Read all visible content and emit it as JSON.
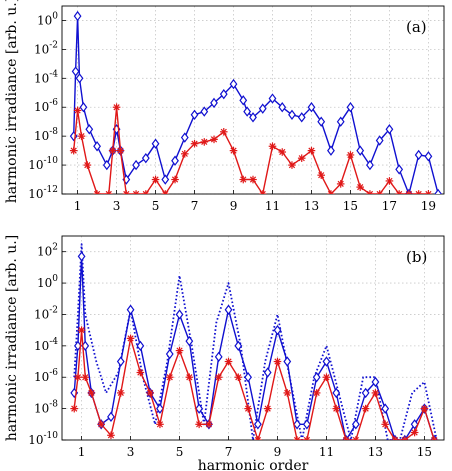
{
  "chart_data": [
    {
      "panel": "(a)",
      "type": "line",
      "yscale": "log",
      "xlim": [
        0.2,
        19.8
      ],
      "ylim": [
        1e-12,
        10.0
      ],
      "xticks": [
        1,
        3,
        5,
        7,
        9,
        11,
        13,
        15,
        17,
        19
      ],
      "ytick_labels": [
        {
          "value": 1,
          "label": "10^0"
        },
        {
          "value": 0.01,
          "label": "10^-2"
        },
        {
          "value": 0.0001,
          "label": "10^-4"
        },
        {
          "value": 1e-06,
          "label": "10^-6"
        },
        {
          "value": 1e-08,
          "label": "10^-8"
        },
        {
          "value": 1e-10,
          "label": "10^-10"
        },
        {
          "value": 1e-12,
          "label": "10^-12"
        }
      ],
      "ylabel": "harmonic irradiance [arb. u.]",
      "xlabel": "",
      "grid": true,
      "series": [
        {
          "color": "#1010d0",
          "line": "solid",
          "marker": "diamond",
          "x": [
            0.8,
            0.9,
            1.0,
            1.1,
            1.3,
            1.6,
            2.0,
            2.5,
            2.8,
            3.0,
            3.2,
            3.5,
            4.0,
            4.5,
            5.0,
            5.5,
            6.0,
            6.5,
            7.0,
            7.5,
            8.0,
            8.5,
            9.0,
            9.5,
            9.7,
            10.0,
            10.5,
            11.0,
            11.5,
            12.0,
            12.5,
            13.0,
            13.5,
            14.0,
            14.5,
            15.0,
            15.5,
            16.0,
            16.5,
            17.0,
            17.5,
            18.0,
            18.5,
            19.0,
            19.5
          ],
          "y": [
            1e-08,
            0.0003,
            2,
            0.0001,
            1e-06,
            3e-08,
            2e-09,
            1e-10,
            1e-09,
            3e-08,
            1e-09,
            1e-11,
            1e-10,
            3e-10,
            3e-09,
            1e-11,
            2e-10,
            8e-09,
            3e-07,
            5e-07,
            2e-06,
            8e-06,
            4e-05,
            3e-06,
            5e-07,
            2e-07,
            8e-07,
            4e-06,
            1e-06,
            3e-07,
            2e-07,
            1e-06,
            1e-07,
            1e-09,
            1e-07,
            1e-06,
            1e-09,
            1e-10,
            5e-09,
            3e-08,
            5e-11,
            1e-12,
            5e-10,
            4e-10,
            1e-12
          ]
        },
        {
          "color": "#e01818",
          "line": "solid",
          "marker": "asterisk",
          "x": [
            0.8,
            1.0,
            1.2,
            1.5,
            2.0,
            2.6,
            2.8,
            3.0,
            3.2,
            3.5,
            4.0,
            4.5,
            5.0,
            5.5,
            6.0,
            6.5,
            7.0,
            7.5,
            8.0,
            8.5,
            9.0,
            9.5,
            10.0,
            10.5,
            11.0,
            11.5,
            12.0,
            12.5,
            13.0,
            13.5,
            14.0,
            14.5,
            15.0,
            15.5,
            16.0,
            16.5,
            17.0,
            17.5,
            18.0,
            18.5,
            19.0
          ],
          "y": [
            1e-09,
            6e-07,
            1e-08,
            1e-10,
            1e-12,
            1e-12,
            1e-09,
            1e-06,
            1e-09,
            1e-12,
            1e-12,
            1e-12,
            1e-11,
            1e-12,
            1e-11,
            6e-10,
            3e-09,
            4e-09,
            6e-09,
            2e-08,
            1e-09,
            1e-11,
            1e-11,
            1e-12,
            2e-09,
            8e-10,
            1e-10,
            3e-10,
            1e-09,
            2e-11,
            1e-12,
            5e-12,
            5e-10,
            3e-12,
            1e-12,
            1e-12,
            8e-12,
            1e-12,
            1e-12,
            1e-12,
            1e-12
          ]
        }
      ]
    },
    {
      "panel": "(b)",
      "type": "line",
      "yscale": "log",
      "xlim": [
        0.2,
        15.8
      ],
      "ylim": [
        1e-10,
        1000.0
      ],
      "xticks": [
        1,
        3,
        5,
        7,
        9,
        11,
        13,
        15
      ],
      "ytick_labels": [
        {
          "value": 100.0,
          "label": "10^2"
        },
        {
          "value": 1,
          "label": "10^0"
        },
        {
          "value": 0.01,
          "label": "10^-2"
        },
        {
          "value": 0.0001,
          "label": "10^-4"
        },
        {
          "value": 1e-06,
          "label": "10^-6"
        },
        {
          "value": 1e-08,
          "label": "10^-8"
        },
        {
          "value": 1e-10,
          "label": "10^-10"
        }
      ],
      "ylabel": "harmonic irradiance [arb. u.]",
      "xlabel": "harmonic order",
      "grid": true,
      "series": [
        {
          "color": "#1010d0",
          "line": "dotted",
          "marker": "none",
          "x": [
            0.7,
            0.85,
            1.0,
            1.15,
            1.3,
            1.6,
            2.0,
            2.5,
            3.0,
            3.5,
            4.0,
            4.5,
            5.0,
            5.5,
            6.0,
            6.5,
            7.0,
            7.5,
            8.0,
            8.5,
            9.0,
            9.5,
            10.0,
            10.5,
            11.0,
            11.5,
            12.0,
            12.5,
            13.0,
            13.5,
            14.0,
            14.5,
            15.0,
            15.5
          ],
          "y": [
            1e-06,
            0.01,
            300.0,
            0.01,
            0.001,
            1e-05,
            1e-07,
            2e-06,
            0.02,
            1e-06,
            1e-09,
            1e-05,
            3,
            0.0001,
            1e-09,
            0.003,
            1,
            0.0001,
            1e-10,
            1e-05,
            0.01,
            1e-06,
            1e-10,
            1e-06,
            0.0001,
            1e-07,
            1e-10,
            1e-06,
            1e-06,
            1e-10,
            1e-10,
            1e-07,
            5e-07,
            1e-10
          ]
        },
        {
          "color": "#1010d0",
          "line": "solid",
          "marker": "diamond",
          "x": [
            0.7,
            0.85,
            1.0,
            1.15,
            1.4,
            1.8,
            2.2,
            2.6,
            3.0,
            3.4,
            3.8,
            4.2,
            4.6,
            5.0,
            5.4,
            5.8,
            6.2,
            6.6,
            7.0,
            7.4,
            7.8,
            8.2,
            8.6,
            9.0,
            9.4,
            9.8,
            10.2,
            10.6,
            11.0,
            11.4,
            11.8,
            12.2,
            12.6,
            13.0,
            13.4,
            13.8,
            14.2,
            14.6,
            15.0,
            15.4
          ],
          "y": [
            1e-07,
            0.0001,
            50.0,
            0.0001,
            1e-07,
            1e-09,
            3e-09,
            1e-05,
            0.02,
            0.0001,
            1e-07,
            1e-08,
            3e-05,
            0.01,
            0.0002,
            1e-08,
            1e-09,
            2e-05,
            0.02,
            0.0001,
            1e-06,
            1e-09,
            2e-06,
            0.001,
            1e-05,
            1e-09,
            1e-09,
            1e-06,
            1e-05,
            1e-07,
            1e-10,
            1e-09,
            1e-07,
            5e-07,
            1e-08,
            1e-10,
            1e-10,
            1e-09,
            1e-08,
            1e-10
          ]
        },
        {
          "color": "#e01818",
          "line": "solid",
          "marker": "asterisk",
          "x": [
            0.7,
            0.85,
            1.0,
            1.15,
            1.4,
            1.8,
            2.2,
            2.6,
            3.0,
            3.4,
            3.8,
            4.2,
            4.6,
            5.0,
            5.4,
            5.8,
            6.2,
            6.6,
            7.0,
            7.4,
            7.8,
            8.2,
            8.6,
            9.0,
            9.4,
            9.8,
            10.2,
            10.6,
            11.0,
            11.4,
            11.8,
            12.2,
            12.6,
            13.0,
            13.4,
            13.8,
            14.2,
            14.6,
            15.0,
            15.4
          ],
          "y": [
            1e-08,
            1e-06,
            0.001,
            1e-06,
            1e-07,
            1e-09,
            2e-10,
            1e-07,
            0.0003,
            2e-06,
            1e-07,
            1e-09,
            1e-06,
            5e-05,
            1e-06,
            1e-09,
            1e-09,
            1e-06,
            1e-05,
            1e-06,
            1e-08,
            1e-10,
            1e-08,
            1e-05,
            1e-07,
            1e-10,
            1e-10,
            1e-07,
            1e-06,
            1e-08,
            1e-10,
            1e-10,
            1e-08,
            1e-07,
            1e-09,
            1e-10,
            1e-10,
            3e-10,
            1e-08,
            1e-10
          ]
        }
      ]
    }
  ]
}
